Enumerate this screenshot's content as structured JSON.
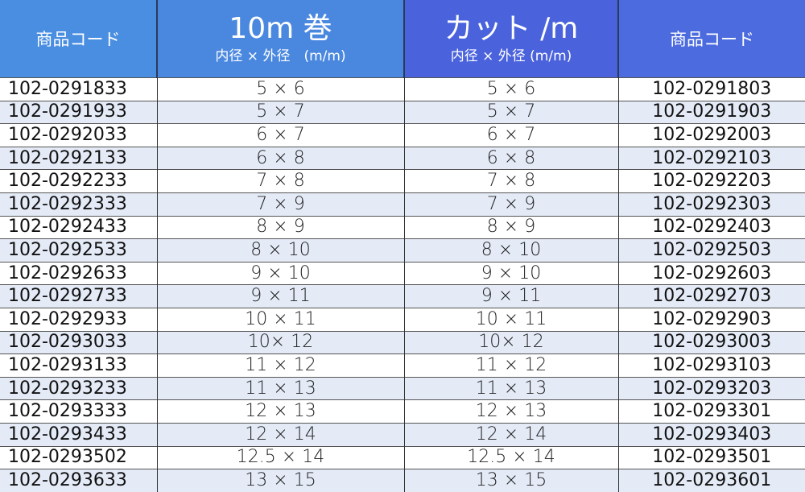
{
  "header": {
    "col1": "商品コード",
    "col2_title": "10m 巻",
    "col2_sub": "内径 × 外径　(m/m)",
    "col3_title": "カット /m",
    "col3_sub": "内径 × 外径 (m/m)",
    "col4": "商品コード"
  },
  "colors": {
    "header_blue_1": "#4a8ee2",
    "header_blue_2": "#4a62dc",
    "row_alt": "#e4ebf7"
  },
  "rows": [
    {
      "code_roll": "102-0291833",
      "size_roll": "5 × 6",
      "size_cut": "5 × 6",
      "code_cut": "102-0291803"
    },
    {
      "code_roll": "102-0291933",
      "size_roll": "5 × 7",
      "size_cut": "5 × 7",
      "code_cut": "102-0291903"
    },
    {
      "code_roll": "102-0292033",
      "size_roll": "6 × 7",
      "size_cut": "6 × 7",
      "code_cut": "102-0292003"
    },
    {
      "code_roll": "102-0292133",
      "size_roll": "6 × 8",
      "size_cut": "6 × 8",
      "code_cut": "102-0292103"
    },
    {
      "code_roll": "102-0292233",
      "size_roll": "7 × 8",
      "size_cut": "7 × 8",
      "code_cut": "102-0292203"
    },
    {
      "code_roll": "102-0292333",
      "size_roll": "7 × 9",
      "size_cut": "7 × 9",
      "code_cut": "102-0292303"
    },
    {
      "code_roll": "102-0292433",
      "size_roll": "8 × 9",
      "size_cut": "8 × 9",
      "code_cut": "102-0292403"
    },
    {
      "code_roll": "102-0292533",
      "size_roll": "8 × 10",
      "size_cut": "8 × 10",
      "code_cut": "102-0292503"
    },
    {
      "code_roll": "102-0292633",
      "size_roll": "9 × 10",
      "size_cut": "9 × 10",
      "code_cut": "102-0292603"
    },
    {
      "code_roll": "102-0292733",
      "size_roll": "9 × 11",
      "size_cut": "9 × 11",
      "code_cut": "102-0292703"
    },
    {
      "code_roll": "102-0292933",
      "size_roll": "10 × 11",
      "size_cut": "10 × 11",
      "code_cut": "102-0292903"
    },
    {
      "code_roll": "102-0293033",
      "size_roll": "10× 12",
      "size_cut": "10× 12",
      "code_cut": "102-0293003"
    },
    {
      "code_roll": "102-0293133",
      "size_roll": "11 × 12",
      "size_cut": "11 × 12",
      "code_cut": "102-0293103"
    },
    {
      "code_roll": "102-0293233",
      "size_roll": "11 × 13",
      "size_cut": "11 × 13",
      "code_cut": "102-0293203"
    },
    {
      "code_roll": "102-0293333",
      "size_roll": "12 × 13",
      "size_cut": "12 × 13",
      "code_cut": "102-0293301"
    },
    {
      "code_roll": "102-0293433",
      "size_roll": "12 × 14",
      "size_cut": "12 × 14",
      "code_cut": "102-0293403"
    },
    {
      "code_roll": "102-0293502",
      "size_roll": "12.5 × 14",
      "size_cut": "12.5 × 14",
      "code_cut": "102-0293501"
    },
    {
      "code_roll": "102-0293633",
      "size_roll": "13 × 15",
      "size_cut": "13 × 15",
      "code_cut": "102-0293601"
    }
  ]
}
